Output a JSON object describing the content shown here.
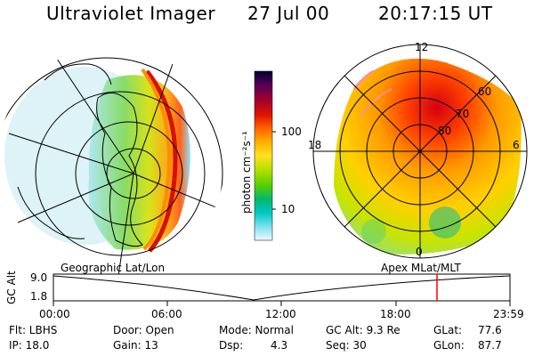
{
  "header": {
    "instrument": "Ultraviolet Imager",
    "date": "27 Jul 00",
    "time": "20:17:15 UT"
  },
  "colorbar": {
    "label": "photon cm⁻²s⁻¹",
    "ticks": [
      "100",
      "10"
    ],
    "scale": "log",
    "colors": [
      "#000030",
      "#4b0058",
      "#a3002f",
      "#e01500",
      "#ff6600",
      "#ffb000",
      "#ffe020",
      "#b8e000",
      "#5ccf00",
      "#00b870",
      "#00c8c8",
      "#7fe0ee",
      "#f0f8ff"
    ]
  },
  "left_panel": {
    "caption": "Geographic Lat/Lon",
    "projection": "satellite view, lat/lon grid"
  },
  "right_panel": {
    "caption": "Apex MLat/MLT",
    "mlt_labels": [
      "12",
      "18",
      "6",
      "0"
    ],
    "mlat_labels": [
      "60",
      "70",
      "80"
    ]
  },
  "timeline": {
    "y_label": "GC Alt",
    "y_ticks": [
      "9.0",
      "1.8"
    ],
    "x_ticks": [
      "00:00",
      "06:00",
      "12:00",
      "18:00",
      "23:59"
    ],
    "marker_color": "#ff0000",
    "marker_time": "20:17"
  },
  "info": {
    "flt": "Flt: LBHS",
    "ip": "IP: 18.0",
    "door": "Door: Open",
    "gain": "Gain: 13",
    "mode": "Mode: Normal",
    "dsp_label": "Dsp:",
    "dsp_value": "4.3",
    "gc_alt": "GC Alt: 9.3 Re",
    "seq": "Seq: 30",
    "glat_label": "GLat:",
    "glat_value": "77.6",
    "glon_label": "GLon:",
    "glon_value": "87.7"
  }
}
